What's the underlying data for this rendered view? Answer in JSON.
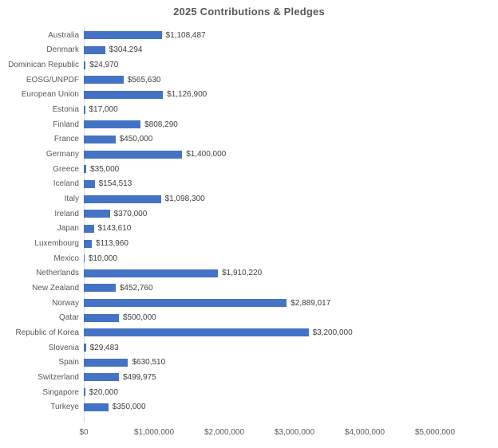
{
  "chart_data": {
    "type": "bar",
    "orientation": "horizontal",
    "title": "2025 Contributions & Pledges",
    "xlabel": "",
    "ylabel": "",
    "xlim": [
      0,
      5000000
    ],
    "grid": false,
    "legend": "none",
    "bar_color": "#4472C4",
    "axis_line_color": "#d9d9d9",
    "categories": [
      "Australia",
      "Denmark",
      "Dominican Republic",
      "EOSG/UNPDF",
      "European Union",
      "Estonia",
      "Finland",
      "France",
      "Germany",
      "Greece",
      "Iceland",
      "Italy",
      "Ireland",
      "Japan",
      "Luxembourg",
      "Mexico",
      "Netherlands",
      "New Zealand",
      "Norway",
      "Qatar",
      "Republic of Korea",
      "Slovenia",
      "Spain",
      "Switzerland",
      "Singapore",
      "Turkeye"
    ],
    "values": [
      1108487,
      304294,
      24970,
      565630,
      1126900,
      17000,
      808290,
      450000,
      1400000,
      35000,
      154513,
      1098300,
      370000,
      143610,
      113960,
      10000,
      1910220,
      452760,
      2889017,
      500000,
      3200000,
      29483,
      630510,
      499975,
      20000,
      350000
    ],
    "value_labels": [
      "$1,108,487",
      "$304,294",
      "$24,970",
      "$565,630",
      "$1,126,900",
      "$17,000",
      "$808,290",
      "$450,000",
      "$1,400,000",
      "$35,000",
      "$154,513",
      "$1,098,300",
      "$370,000",
      "$143,610",
      "$113,960",
      "$10,000",
      "$1,910,220",
      "$452,760",
      "$2,889,017",
      "$500,000",
      "$3,200,000",
      "$29,483",
      "$630,510",
      "$499,975",
      "$20,000",
      "$350,000"
    ],
    "x_ticks": {
      "values": [
        0,
        1000000,
        2000000,
        3000000,
        4000000,
        5000000
      ],
      "labels": [
        "$0",
        "$1,000,000",
        "$2,000,000",
        "$3,000,000",
        "$4,000,000",
        "$5,000,000"
      ]
    }
  }
}
